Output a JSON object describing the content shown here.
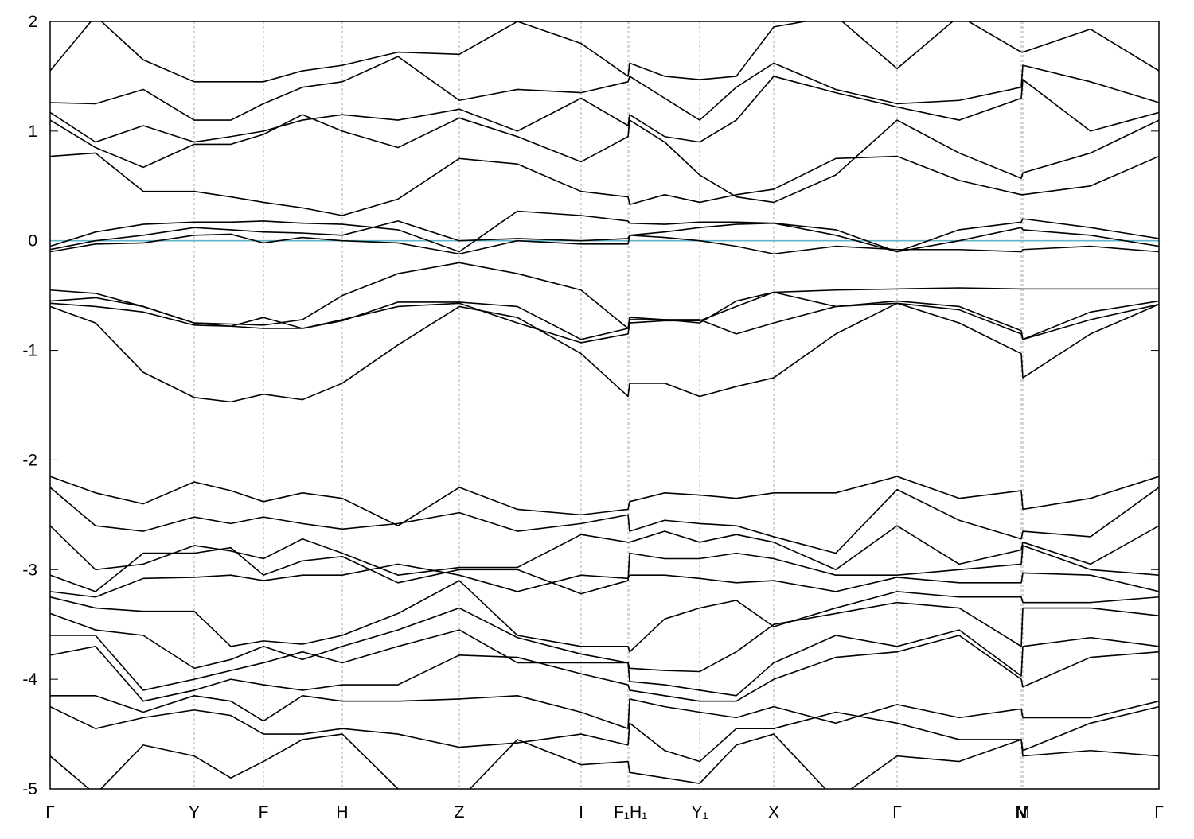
{
  "chart_data": {
    "type": "line",
    "x": [
      0,
      0.057,
      0.117,
      0.181,
      0.227,
      0.268,
      0.317,
      0.367,
      0.437,
      0.514,
      0.587,
      0.667,
      0.726,
      0.728,
      0.772,
      0.816,
      0.862,
      0.909,
      0.987,
      1.064,
      1.142,
      1.22,
      1.222,
      1.307,
      1.393
    ],
    "xlim": [
      0,
      1.393
    ],
    "xticks": [
      {
        "value": 0,
        "label": "Γ"
      },
      {
        "value": 0.181,
        "label": "Y"
      },
      {
        "value": 0.268,
        "label": "F"
      },
      {
        "value": 0.367,
        "label": "H"
      },
      {
        "value": 0.514,
        "label": "Z"
      },
      {
        "value": 0.667,
        "label": "I"
      },
      {
        "value": 0.726,
        "label": "F₁"
      },
      {
        "value": 0.728,
        "label": "H₁"
      },
      {
        "value": 0.816,
        "label": "Y₁"
      },
      {
        "value": 0.909,
        "label": "X"
      },
      {
        "value": 1.064,
        "label": "Γ"
      },
      {
        "value": 1.22,
        "label": "N"
      },
      {
        "value": 1.222,
        "label": "M"
      },
      {
        "value": 1.393,
        "label": "Γ"
      }
    ],
    "ylim": [
      -5,
      2
    ],
    "yticks": [
      -5,
      -4,
      -3,
      -2,
      -1,
      0,
      1,
      2
    ],
    "grid": "x",
    "line_color": "#000000",
    "fermi_level": 0,
    "fermi_color": "#5fb3c9",
    "series": [
      {
        "values": [
          1.55,
          2.05,
          1.65,
          1.45,
          1.45,
          1.45,
          1.55,
          1.6,
          1.72,
          1.7,
          2.0,
          1.8,
          1.5,
          1.62,
          1.5,
          1.47,
          1.5,
          1.95,
          2.05,
          1.57,
          2.05,
          1.72,
          1.72,
          1.93,
          1.55
        ]
      },
      {
        "values": [
          1.26,
          1.25,
          1.38,
          1.1,
          1.1,
          1.25,
          1.4,
          1.45,
          1.68,
          1.28,
          1.38,
          1.35,
          1.45,
          1.5,
          1.3,
          1.1,
          1.4,
          1.62,
          1.38,
          1.25,
          1.28,
          1.4,
          1.6,
          1.45,
          1.26
        ]
      },
      {
        "values": [
          1.17,
          0.9,
          1.05,
          0.9,
          0.95,
          1.0,
          1.1,
          1.15,
          1.1,
          1.2,
          1.0,
          1.3,
          1.05,
          1.15,
          0.95,
          0.9,
          1.1,
          1.5,
          1.35,
          1.22,
          1.1,
          1.3,
          1.47,
          1.0,
          1.17
        ]
      },
      {
        "values": [
          1.1,
          0.85,
          0.67,
          0.88,
          0.88,
          0.97,
          1.15,
          1.0,
          0.85,
          1.12,
          0.95,
          0.72,
          0.95,
          1.1,
          0.9,
          0.6,
          0.4,
          0.35,
          0.6,
          1.1,
          0.8,
          0.57,
          0.62,
          0.8,
          1.1
        ]
      },
      {
        "values": [
          0.77,
          0.8,
          0.45,
          0.45,
          0.4,
          0.35,
          0.3,
          0.23,
          0.38,
          0.75,
          0.7,
          0.45,
          0.4,
          0.33,
          0.42,
          0.35,
          0.42,
          0.47,
          0.75,
          0.77,
          0.55,
          0.42,
          0.42,
          0.5,
          0.77
        ]
      },
      {
        "values": [
          -0.05,
          0.08,
          0.15,
          0.17,
          0.17,
          0.18,
          0.16,
          0.15,
          0.1,
          -0.1,
          0.27,
          0.23,
          0.18,
          0.16,
          0.15,
          0.17,
          0.17,
          0.16,
          0.1,
          -0.1,
          0.1,
          0.17,
          0.2,
          0.12,
          0.02
        ]
      },
      {
        "values": [
          -0.08,
          0.0,
          0.05,
          0.12,
          0.1,
          0.08,
          0.07,
          0.05,
          0.18,
          0.0,
          0.02,
          0.0,
          0.02,
          0.05,
          0.08,
          0.12,
          0.15,
          0.16,
          0.05,
          -0.1,
          0.0,
          0.12,
          0.1,
          0.05,
          -0.05
        ]
      },
      {
        "values": [
          -0.1,
          -0.03,
          -0.02,
          0.05,
          0.06,
          -0.02,
          0.03,
          0.0,
          -0.02,
          -0.12,
          0.0,
          -0.03,
          -0.03,
          0.05,
          0.03,
          0.0,
          -0.05,
          -0.12,
          -0.05,
          -0.08,
          -0.08,
          -0.1,
          -0.08,
          -0.05,
          -0.1
        ]
      },
      {
        "values": [
          -0.45,
          -0.48,
          -0.6,
          -0.75,
          -0.76,
          -0.77,
          -0.72,
          -0.5,
          -0.3,
          -0.2,
          -0.3,
          -0.45,
          -0.8,
          -0.72,
          -0.72,
          -0.75,
          -0.55,
          -0.47,
          -0.45,
          -0.44,
          -0.43,
          -0.44,
          -0.44,
          -0.44,
          -0.44
        ]
      },
      {
        "values": [
          -0.55,
          -0.52,
          -0.6,
          -0.75,
          -0.78,
          -0.8,
          -0.8,
          -0.73,
          -0.56,
          -0.56,
          -0.6,
          -0.9,
          -0.8,
          -0.7,
          -0.72,
          -0.72,
          -0.85,
          -0.75,
          -0.6,
          -0.55,
          -0.6,
          -0.82,
          -0.9,
          -0.65,
          -0.55
        ]
      },
      {
        "values": [
          -0.57,
          -0.6,
          -0.65,
          -0.77,
          -0.78,
          -0.7,
          -0.8,
          -0.72,
          -0.6,
          -0.57,
          -0.75,
          -0.93,
          -0.85,
          -0.75,
          -0.73,
          -0.73,
          -0.6,
          -0.47,
          -0.6,
          -0.57,
          -0.63,
          -0.85,
          -0.9,
          -0.72,
          -0.58
        ]
      },
      {
        "values": [
          -0.6,
          -0.75,
          -1.2,
          -1.43,
          -1.47,
          -1.4,
          -1.45,
          -1.3,
          -0.95,
          -0.6,
          -0.7,
          -1.03,
          -1.42,
          -1.3,
          -1.3,
          -1.42,
          -1.33,
          -1.25,
          -0.85,
          -0.57,
          -0.75,
          -1.03,
          -1.25,
          -0.85,
          -0.58
        ]
      },
      {
        "values": [
          -2.15,
          -2.3,
          -2.4,
          -2.2,
          -2.28,
          -2.38,
          -2.3,
          -2.35,
          -2.6,
          -2.25,
          -2.45,
          -2.5,
          -2.45,
          -2.38,
          -2.3,
          -2.32,
          -2.35,
          -2.3,
          -2.3,
          -2.15,
          -2.35,
          -2.28,
          -2.45,
          -2.35,
          -2.15
        ]
      },
      {
        "values": [
          -2.25,
          -2.6,
          -2.65,
          -2.52,
          -2.58,
          -2.52,
          -2.58,
          -2.63,
          -2.58,
          -2.48,
          -2.65,
          -2.58,
          -2.5,
          -2.65,
          -2.55,
          -2.58,
          -2.6,
          -2.7,
          -2.85,
          -2.27,
          -2.55,
          -2.72,
          -2.65,
          -2.7,
          -2.25
        ]
      },
      {
        "values": [
          -2.6,
          -3.0,
          -2.95,
          -2.78,
          -2.83,
          -2.9,
          -2.72,
          -2.85,
          -3.05,
          -2.98,
          -2.98,
          -2.68,
          -2.75,
          -2.75,
          -2.65,
          -2.75,
          -2.68,
          -2.75,
          -3.0,
          -2.6,
          -2.95,
          -2.82,
          -2.75,
          -2.95,
          -2.6
        ]
      },
      {
        "values": [
          -3.05,
          -3.2,
          -2.85,
          -2.85,
          -2.8,
          -3.05,
          -2.92,
          -2.88,
          -3.12,
          -3.0,
          -3.0,
          -3.22,
          -3.1,
          -2.85,
          -2.9,
          -2.9,
          -2.85,
          -2.9,
          -3.05,
          -3.05,
          -3.0,
          -2.95,
          -2.78,
          -3.0,
          -3.05
        ]
      },
      {
        "values": [
          -3.2,
          -3.25,
          -3.08,
          -3.07,
          -3.05,
          -3.1,
          -3.05,
          -3.05,
          -2.95,
          -3.05,
          -3.2,
          -3.05,
          -3.08,
          -3.05,
          -3.05,
          -3.08,
          -3.12,
          -3.1,
          -3.2,
          -3.07,
          -3.12,
          -3.12,
          -3.03,
          -3.05,
          -3.2
        ]
      },
      {
        "values": [
          -3.25,
          -3.35,
          -3.38,
          -3.38,
          -3.7,
          -3.65,
          -3.68,
          -3.6,
          -3.4,
          -3.1,
          -3.6,
          -3.7,
          -3.7,
          -3.75,
          -3.45,
          -3.35,
          -3.28,
          -3.52,
          -3.35,
          -3.2,
          -3.25,
          -3.25,
          -3.3,
          -3.3,
          -3.25
        ]
      },
      {
        "values": [
          -3.4,
          -3.55,
          -3.6,
          -3.9,
          -3.82,
          -3.7,
          -3.82,
          -3.7,
          -3.55,
          -3.35,
          -3.62,
          -3.77,
          -3.85,
          -3.9,
          -3.92,
          -3.93,
          -3.75,
          -3.5,
          -3.4,
          -3.3,
          -3.35,
          -3.7,
          -3.35,
          -3.35,
          -3.42
        ]
      },
      {
        "values": [
          -3.6,
          -3.6,
          -4.1,
          -4.0,
          -3.92,
          -3.85,
          -3.75,
          -3.85,
          -3.7,
          -3.55,
          -3.85,
          -3.85,
          -3.85,
          -4.02,
          -4.05,
          -4.1,
          -4.15,
          -3.85,
          -3.6,
          -3.7,
          -3.55,
          -3.97,
          -3.7,
          -3.62,
          -3.7
        ]
      },
      {
        "values": [
          -3.78,
          -3.7,
          -4.2,
          -4.1,
          -4.0,
          -4.05,
          -4.1,
          -4.05,
          -4.05,
          -3.78,
          -3.8,
          -3.95,
          -4.05,
          -4.1,
          -4.15,
          -4.2,
          -4.2,
          -4.0,
          -3.8,
          -3.75,
          -3.6,
          -4.0,
          -4.07,
          -3.8,
          -3.75
        ]
      },
      {
        "values": [
          -4.15,
          -4.15,
          -4.3,
          -4.15,
          -4.2,
          -4.38,
          -4.15,
          -4.2,
          -4.2,
          -4.18,
          -4.15,
          -4.3,
          -4.45,
          -4.18,
          -4.25,
          -4.3,
          -4.35,
          -4.25,
          -4.4,
          -4.23,
          -4.35,
          -4.27,
          -4.35,
          -4.35,
          -4.2
        ]
      },
      {
        "values": [
          -4.25,
          -4.45,
          -4.35,
          -4.28,
          -4.33,
          -4.5,
          -4.5,
          -4.45,
          -4.5,
          -4.62,
          -4.58,
          -4.5,
          -4.6,
          -4.4,
          -4.65,
          -4.75,
          -4.45,
          -4.45,
          -4.3,
          -4.4,
          -4.55,
          -4.55,
          -4.65,
          -4.4,
          -4.25
        ]
      },
      {
        "values": [
          -4.7,
          -5.05,
          -4.6,
          -4.7,
          -4.9,
          -4.75,
          -4.55,
          -4.5,
          -5.0,
          -5.1,
          -4.55,
          -4.78,
          -4.75,
          -4.85,
          -4.9,
          -4.95,
          -4.6,
          -4.5,
          -5.1,
          -4.7,
          -4.75,
          -4.55,
          -4.7,
          -4.65,
          -4.7
        ]
      }
    ]
  }
}
